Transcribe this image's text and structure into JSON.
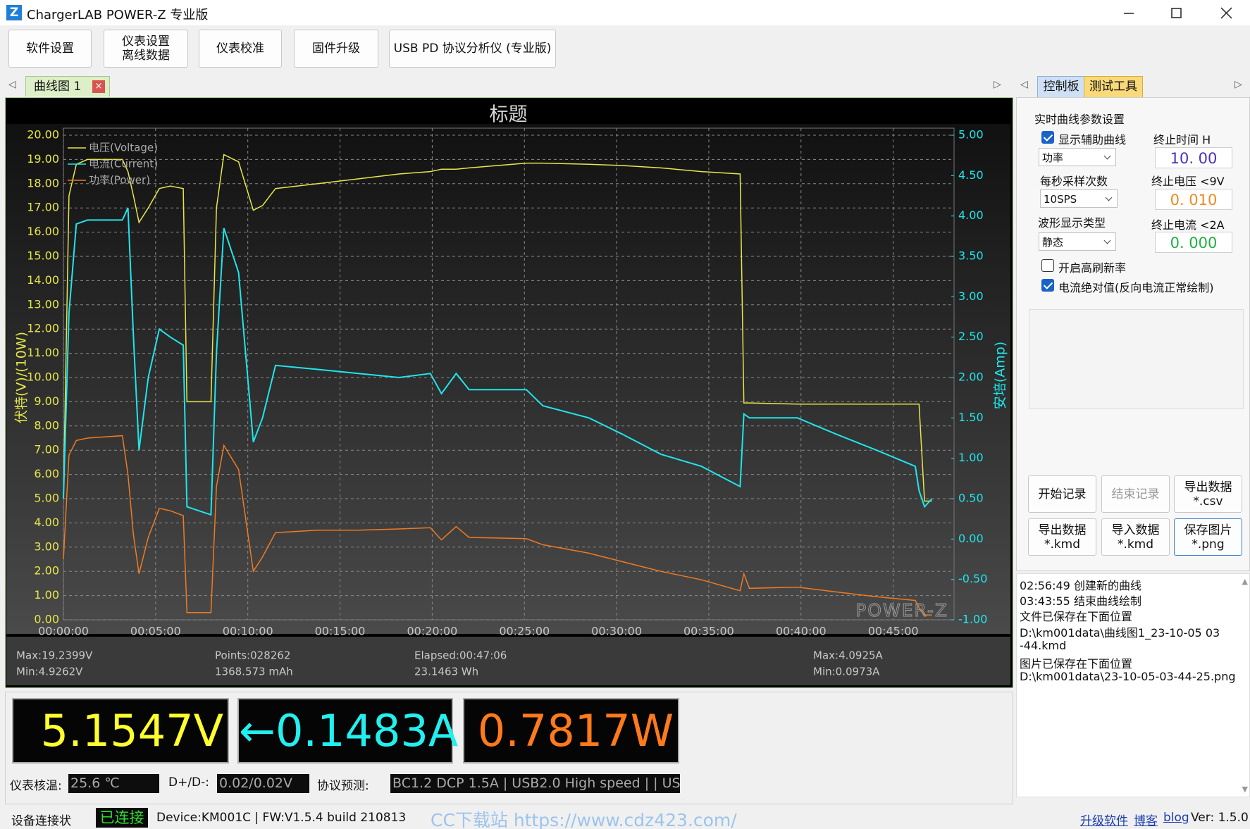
{
  "window": {
    "title": "ChargerLAB POWER-Z 专业版"
  },
  "toolbar": {
    "buttons": [
      [
        "软件设置"
      ],
      [
        "仪表设置",
        "离线数据"
      ],
      [
        "仪表校准"
      ],
      [
        "固件升级"
      ],
      [
        "USB PD 协议分析仪 (专业版)"
      ]
    ]
  },
  "tabs": {
    "chart_tab": "曲线图 1",
    "close": "×"
  },
  "chart_data": {
    "type": "line",
    "title": "标题",
    "ylabel": "伏特(V)/(10W)",
    "y2label": "安培(Amp)",
    "x": [
      0,
      0.3,
      0.7,
      1.3,
      3.2,
      3.5,
      3.8,
      4.1,
      4.6,
      5.2,
      5.8,
      6.5,
      6.7,
      8.0,
      8.3,
      8.7,
      9.5,
      10.3,
      10.8,
      11.5,
      13.8,
      16,
      18.2,
      19.9,
      20.5,
      21.3,
      22,
      25.1,
      26,
      28.5,
      30.3,
      32.4,
      34.6,
      36.7,
      36.9,
      37.2,
      39.8,
      41.9,
      44.1,
      46.2,
      46.4,
      46.7,
      47.1
    ],
    "series": [
      {
        "name": "电压(Voltage)",
        "color": "#e6e64a",
        "axis": "y",
        "values": [
          5,
          17.5,
          18.8,
          19.0,
          19.0,
          18.5,
          17.5,
          16.4,
          17.0,
          17.8,
          17.9,
          17.8,
          9.0,
          9.0,
          17.0,
          19.2,
          18.9,
          16.9,
          17.1,
          17.8,
          18.0,
          18.2,
          18.4,
          18.5,
          18.6,
          18.6,
          18.65,
          18.85,
          18.85,
          18.8,
          18.75,
          18.65,
          18.5,
          18.4,
          8.95,
          8.95,
          8.9,
          8.9,
          8.9,
          8.9,
          8.9,
          4.9,
          4.9
        ]
      },
      {
        "name": "电流(Current)",
        "color": "#1ee6ec",
        "axis": "y2",
        "values": [
          0.5,
          2.8,
          3.9,
          3.95,
          3.95,
          4.1,
          2.5,
          1.1,
          2.0,
          2.6,
          2.5,
          2.4,
          0.4,
          0.3,
          2.3,
          3.85,
          3.3,
          1.2,
          1.5,
          2.15,
          2.1,
          2.05,
          2.0,
          2.05,
          1.8,
          2.05,
          1.85,
          1.85,
          1.65,
          1.5,
          1.3,
          1.05,
          0.9,
          0.65,
          1.55,
          1.5,
          1.5,
          1.3,
          1.1,
          0.9,
          0.6,
          0.4,
          0.5
        ]
      },
      {
        "name": "功率(Power)",
        "color": "#f07a22",
        "axis": "y",
        "values": [
          2.5,
          6.8,
          7.4,
          7.5,
          7.6,
          6.0,
          3.5,
          1.9,
          3.4,
          4.6,
          4.5,
          4.3,
          0.3,
          0.3,
          5.5,
          7.2,
          6.2,
          2.0,
          2.6,
          3.6,
          3.7,
          3.7,
          3.75,
          3.8,
          3.3,
          3.85,
          3.4,
          3.35,
          3.1,
          2.75,
          2.4,
          2.0,
          1.65,
          1.2,
          1.9,
          1.3,
          1.35,
          1.15,
          0.95,
          0.8,
          0.5,
          0.2,
          0.2
        ]
      }
    ],
    "xlim": [
      0,
      48.3
    ],
    "xticks": [
      {
        "value": 0,
        "label": "00:00:00"
      },
      {
        "value": 5,
        "label": "00:05:00"
      },
      {
        "value": 10,
        "label": "00:10:00"
      },
      {
        "value": 15,
        "label": "00:15:00"
      },
      {
        "value": 20,
        "label": "00:20:00"
      },
      {
        "value": 25,
        "label": "00:25:00"
      },
      {
        "value": 30,
        "label": "00:30:00"
      },
      {
        "value": 35,
        "label": "00:35:00"
      },
      {
        "value": 40,
        "label": "00:40:00"
      },
      {
        "value": 45,
        "label": "00:45:00"
      }
    ],
    "ylim": [
      0,
      20
    ],
    "yticks": [
      {
        "value": 0,
        "label": "0.00"
      },
      {
        "value": 1,
        "label": "1.00"
      },
      {
        "value": 2,
        "label": "2.00"
      },
      {
        "value": 3,
        "label": "3.00"
      },
      {
        "value": 4,
        "label": "4.00"
      },
      {
        "value": 5,
        "label": "5.00"
      },
      {
        "value": 6,
        "label": "6.00"
      },
      {
        "value": 7,
        "label": "7.00"
      },
      {
        "value": 8,
        "label": "8.00"
      },
      {
        "value": 9,
        "label": "9.00"
      },
      {
        "value": 10,
        "label": "10.00"
      },
      {
        "value": 11,
        "label": "11.00"
      },
      {
        "value": 12,
        "label": "12.00"
      },
      {
        "value": 13,
        "label": "13.00"
      },
      {
        "value": 14,
        "label": "14.00"
      },
      {
        "value": 15,
        "label": "15.00"
      },
      {
        "value": 16,
        "label": "16.00"
      },
      {
        "value": 17,
        "label": "17.00"
      },
      {
        "value": 18,
        "label": "18.00"
      },
      {
        "value": 19,
        "label": "19.00"
      },
      {
        "value": 20,
        "label": "20.00"
      }
    ],
    "y2lim": [
      -1,
      5
    ],
    "y2ticks": [
      {
        "value": -1,
        "label": "-1.00"
      },
      {
        "value": -0.5,
        "label": "-0.50"
      },
      {
        "value": 0,
        "label": "0.00"
      },
      {
        "value": 0.5,
        "label": "0.50"
      },
      {
        "value": 1,
        "label": "1.00"
      },
      {
        "value": 1.5,
        "label": "1.50"
      },
      {
        "value": 2,
        "label": "2.00"
      },
      {
        "value": 2.5,
        "label": "2.50"
      },
      {
        "value": 3,
        "label": "3.00"
      },
      {
        "value": 3.5,
        "label": "3.50"
      },
      {
        "value": 4,
        "label": "4.00"
      },
      {
        "value": 4.5,
        "label": "4.50"
      },
      {
        "value": 5,
        "label": "5.00"
      }
    ],
    "grid": true,
    "legend": "upper-left",
    "watermark": "POWER-Z",
    "stats": [
      [
        "Max:19.2399V",
        "Min:4.9262V"
      ],
      [
        "Points:028262",
        "1368.573 mAh"
      ],
      [
        "Elapsed:00:47:06",
        "23.1463 Wh"
      ],
      [
        "Max:4.0925A",
        "Min:0.0973A"
      ]
    ]
  },
  "control_panel": {
    "tabs": [
      "控制板",
      "测试工具"
    ],
    "section": "实时曲线参数设置",
    "show_aux": {
      "label": "显示辅助曲线",
      "checked": true
    },
    "end_time": {
      "label": "终止时间 H",
      "value": "10. 00"
    },
    "aux_select": "功率",
    "sample_rate": {
      "label": "每秒采样次数",
      "value": "10SPS"
    },
    "end_voltage": {
      "label": "终止电压 <9V",
      "value": "0. 010"
    },
    "wave_type": {
      "label": "波形显示类型",
      "value": "静态"
    },
    "end_current": {
      "label": "终止电流 <2A",
      "value": "0. 000"
    },
    "high_refresh": {
      "label": "开启高刷新率",
      "checked": false
    },
    "abs_current": {
      "label": "电流绝对值(反向电流正常绘制)",
      "checked": true
    },
    "buttons": [
      [
        "开始记录"
      ],
      [
        "结束记录"
      ],
      [
        "导出数据",
        "*.csv"
      ],
      [
        "导出数据",
        "*.kmd"
      ],
      [
        "导入数据",
        "*.kmd"
      ],
      [
        "保存图片",
        "*.png"
      ]
    ]
  },
  "log": [
    "02:56:49 创建新的曲线",
    "03:43:55 结束曲线绘制",
    "文件已保存在下面位置",
    "D:\\km001data\\曲线图1_23-10-05  03",
    "-44.kmd",
    "图片已保存在下面位置",
    "D:\\km001data\\23-10-05-03-44-25.png"
  ],
  "readouts": {
    "voltage": "5.1547V",
    "current": "←0.1483A",
    "power": "0.7817W"
  },
  "info": {
    "temp_label": "仪表核温:",
    "temp": "25.6 ℃",
    "dpdm_label": "D+/D-:",
    "dpdm": "0.02/0.02V",
    "protocol_label": "协议预测:",
    "protocol": "BC1.2 DCP 1.5A | USB2.0 High speed |  | US"
  },
  "status": {
    "label": "设备连接状",
    "state": "已连接",
    "device": "Device:KM001C | FW:V1.5.4 build 210813",
    "site": "CC下载站 https://www.cdz423.com/",
    "upgrade": "升级软件",
    "blog_cn": "博客",
    "blog": "blog",
    "version": "Ver: 1.5.0"
  }
}
